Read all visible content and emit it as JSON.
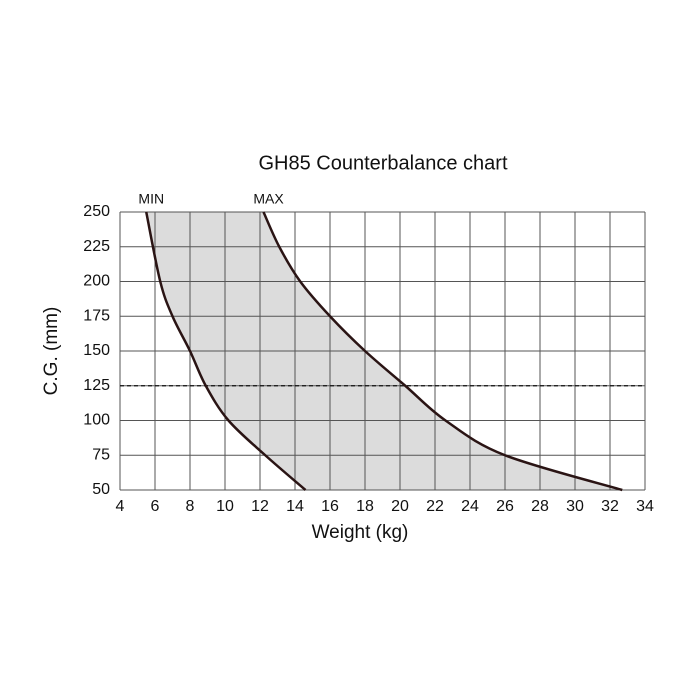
{
  "chart_data": {
    "type": "line",
    "title": "GH85 Counterbalance chart",
    "xlabel": "Weight (kg)",
    "ylabel": "C.G. (mm)",
    "xlim": [
      4,
      34
    ],
    "xticks": [
      4,
      6,
      8,
      10,
      12,
      14,
      16,
      18,
      20,
      22,
      24,
      26,
      28,
      30,
      32,
      34
    ],
    "ylim": [
      50,
      250
    ],
    "yticks": [
      50,
      75,
      100,
      125,
      150,
      175,
      200,
      225,
      250
    ],
    "grid": true,
    "fill_between": "#dcdcdc",
    "hline": 125,
    "series": [
      {
        "name": "MIN",
        "color": "#2a1414",
        "x": [
          5.5,
          6.3,
          7.0,
          8.0,
          8.9,
          10.2,
          12.3,
          14.6
        ],
        "values": [
          250,
          200,
          175,
          150,
          125,
          100,
          75,
          50
        ]
      },
      {
        "name": "MAX",
        "color": "#2a1414",
        "x": [
          12.2,
          13.1,
          14.3,
          16.0,
          18.0,
          20.3,
          22.6,
          26.0,
          32.7
        ],
        "values": [
          250,
          225,
          200,
          175,
          150,
          125,
          100,
          75,
          50
        ]
      }
    ]
  }
}
